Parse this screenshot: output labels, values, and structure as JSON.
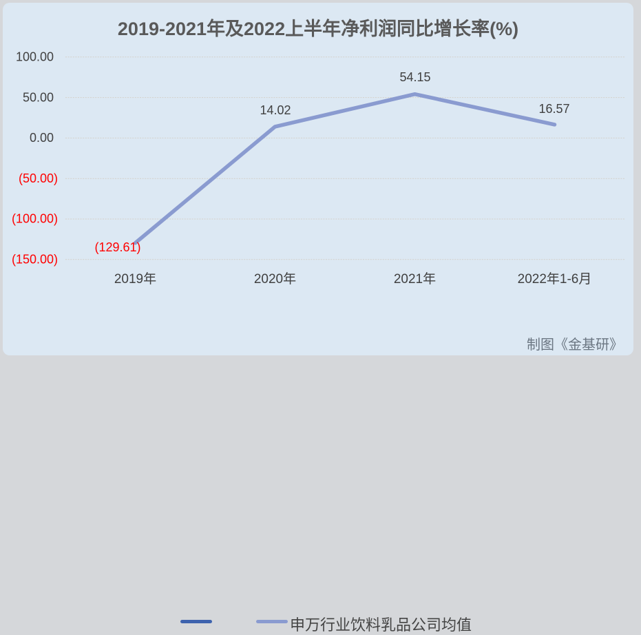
{
  "page": {
    "credit": "制图《金基研》",
    "panel_background": "#dce8f3",
    "outer_background": "#d5d7da"
  },
  "chart_data": {
    "type": "line",
    "title": "2019-2021年及2022上半年净利润同比增长率(%)",
    "categories": [
      "2019年",
      "2020年",
      "2021年",
      "2022年1-6月"
    ],
    "series": [
      {
        "name": "",
        "color": "#3e63ae",
        "values": []
      },
      {
        "name": "申万行业饮料乳品公司均值",
        "color": "#8a9bd0",
        "values": [
          -129.61,
          14.02,
          54.15,
          16.57
        ]
      }
    ],
    "data_labels": [
      "(129.61)",
      "14.02",
      "54.15",
      "16.57"
    ],
    "yticks": [
      {
        "label": "100.00",
        "value": 100,
        "negative": false
      },
      {
        "label": "50.00",
        "value": 50,
        "negative": false
      },
      {
        "label": "0.00",
        "value": 0,
        "negative": false
      },
      {
        "label": "(50.00)",
        "value": -50,
        "negative": true
      },
      {
        "label": "(100.00)",
        "value": -100,
        "negative": true
      },
      {
        "label": "(150.00)",
        "value": -150,
        "negative": true
      }
    ],
    "ylim": [
      -150,
      100
    ],
    "grid": true,
    "legend_position": "bottom",
    "negative_color": "#ff0000",
    "label_color": "#404040",
    "title_color": "#595959"
  }
}
